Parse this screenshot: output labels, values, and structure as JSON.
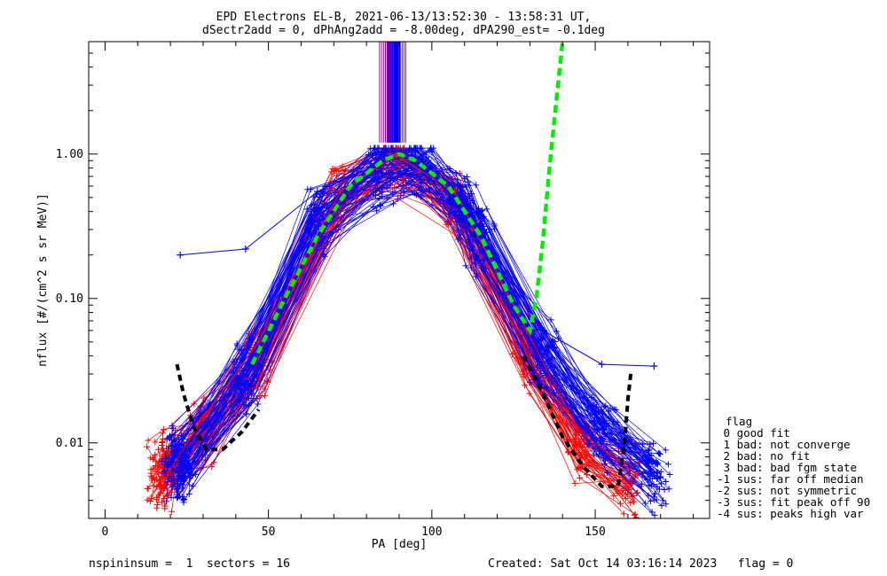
{
  "chart_data": {
    "type": "line",
    "title": "EPD Electrons EL-B, 2021-06-13/13:52:30 - 13:58:31 UT,",
    "subtitle": "dSectr2add = 0, dPhAng2add = -8.00deg, dPA290_est=  -0.1deg",
    "xlabel": "PA [deg]",
    "ylabel": "nflux [#/(cm^2 s sr MeV)]",
    "xlim": [
      -5,
      185
    ],
    "ylim": [
      0.003,
      6.0
    ],
    "yscale": "log",
    "x_ticks": [
      0,
      50,
      100,
      150
    ],
    "x_tick_labels": [
      "0",
      "50",
      "100",
      "150"
    ],
    "y_ticks": [
      0.01,
      0.1,
      1.0
    ],
    "y_tick_labels": [
      "0.01",
      "0.10",
      "1.00"
    ],
    "colors": {
      "red_series": "#ff0000",
      "blue_series": "#0000ff",
      "fit": "#00ee00",
      "fit_wings": "#000000",
      "spikes_purple": "#a000a0"
    },
    "series": [
      {
        "color": "blue",
        "x": [
          23,
          43,
          65,
          84,
          90,
          96,
          109,
          115,
          134,
          152,
          168
        ],
        "y": [
          0.2,
          0.22,
          0.55,
          0.85,
          1.0,
          0.85,
          0.5,
          0.3,
          0.06,
          0.035,
          0.034
        ]
      },
      {
        "color": "red",
        "x": [
          19,
          30,
          47,
          72,
          89,
          107,
          129,
          145,
          163
        ],
        "y": [
          0.006,
          0.015,
          0.05,
          0.55,
          0.98,
          0.55,
          0.06,
          0.012,
          0.006
        ]
      }
    ],
    "fit_curve": {
      "color": "green",
      "x": [
        45,
        55,
        65,
        75,
        85,
        90,
        95,
        105,
        115,
        125,
        130,
        132,
        134,
        136,
        138,
        140
      ],
      "y": [
        0.035,
        0.1,
        0.27,
        0.6,
        0.9,
        1.0,
        0.9,
        0.6,
        0.27,
        0.09,
        0.06,
        0.1,
        0.25,
        0.8,
        2.2,
        6.0
      ]
    },
    "wing_fits": [
      {
        "color": "black",
        "x": [
          22,
          24,
          27,
          31,
          36,
          42,
          47
        ],
        "y": [
          0.035,
          0.022,
          0.013,
          0.009,
          0.009,
          0.012,
          0.017
        ]
      },
      {
        "color": "black",
        "x": [
          128,
          134,
          140,
          146,
          152,
          157,
          159,
          160,
          161
        ],
        "y": [
          0.04,
          0.022,
          0.011,
          0.007,
          0.005,
          0.005,
          0.01,
          0.02,
          0.032
        ]
      }
    ],
    "spike_region": {
      "x_start": 84,
      "x_end": 92
    },
    "legend_title": "flag",
    "legend": [
      " 0 good fit",
      " 1 bad: not converge",
      " 2 bad: no fit",
      " 3 bad: bad fgm state",
      "-1 sus: far off median",
      "-2 sus: not symmetric",
      "-3 sus: fit peak off 90",
      "-4 sus: peaks high var"
    ]
  },
  "footer": {
    "left": "nspininsum =  1  sectors = 16",
    "right": "Created: Sat Oct 14 03:16:14 2023   flag = 0"
  }
}
